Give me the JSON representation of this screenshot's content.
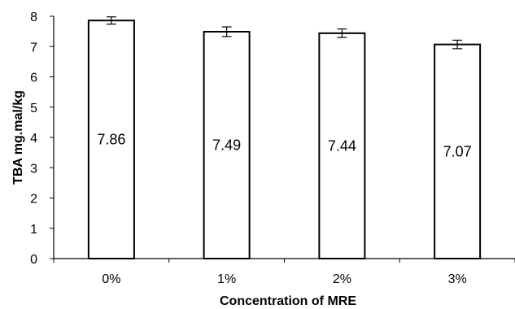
{
  "chart_data": {
    "type": "bar",
    "categories": [
      "0%",
      "1%",
      "2%",
      "3%"
    ],
    "values": [
      7.86,
      7.49,
      7.44,
      7.07
    ],
    "data_labels": [
      "7.86",
      "7.49",
      "7.44",
      "7.07"
    ],
    "error": [
      0.12,
      0.16,
      0.14,
      0.14
    ],
    "xlabel": "Concentration of MRE",
    "ylabel": "TBA mg.mal/kg",
    "ylim": [
      0,
      8
    ],
    "yticks": [
      "0",
      "1",
      "2",
      "3",
      "4",
      "5",
      "6",
      "7",
      "8"
    ],
    "grid": false,
    "legend": "none",
    "bar_fill": "#ffffff",
    "bar_stroke": "#000000"
  }
}
